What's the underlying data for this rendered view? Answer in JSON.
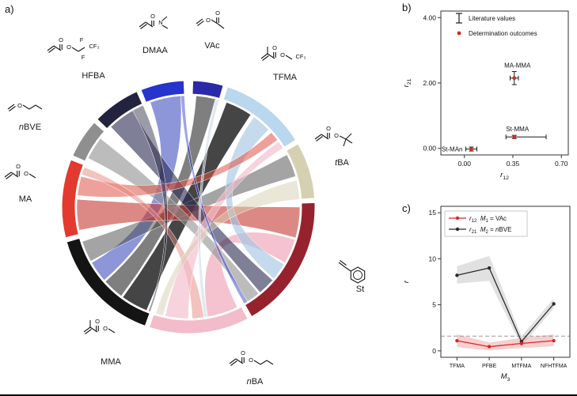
{
  "figure": {
    "panel_a_label": "a)",
    "panel_b_label": "b)",
    "panel_c_label": "c)"
  },
  "chord_diagram": {
    "monomers": [
      {
        "id": "hfba",
        "prefix": "",
        "name": "HFBA",
        "color": "#23233f",
        "arc": [
          314,
          336
        ],
        "atoms": [
          "O",
          "O",
          "F",
          "F",
          "CF₃"
        ]
      },
      {
        "id": "dmaa",
        "prefix": "",
        "name": "DMAA",
        "color": "#2633cc",
        "arc": [
          338,
          358
        ],
        "atoms": [
          "O",
          "N"
        ]
      },
      {
        "id": "vac",
        "prefix": "",
        "name": "VAc",
        "color": "#2a2aa8",
        "arc": [
          2,
          16
        ],
        "atoms": [
          "O",
          "O"
        ]
      },
      {
        "id": "tfma",
        "prefix": "",
        "name": "TFMA",
        "color": "#b9d7ee",
        "arc": [
          18,
          58
        ],
        "atoms": [
          "O",
          "O",
          "CF₃"
        ]
      },
      {
        "id": "tba",
        "prefix": "t",
        "name": "BA",
        "color": "#d6d0b2",
        "arc": [
          60,
          86
        ],
        "atoms": [
          "O",
          "O"
        ]
      },
      {
        "id": "st",
        "prefix": "",
        "name": "St",
        "color": "#96222e",
        "arc": [
          88,
          150
        ],
        "atoms": []
      },
      {
        "id": "nba",
        "prefix": "n",
        "name": "BA",
        "color": "#f3bccb",
        "arc": [
          152,
          198
        ],
        "atoms": [
          "O",
          "O"
        ]
      },
      {
        "id": "mma",
        "prefix": "",
        "name": "MMA",
        "color": "#141414",
        "arc": [
          200,
          254
        ],
        "atoms": [
          "O",
          "O"
        ]
      },
      {
        "id": "ma",
        "prefix": "",
        "name": "MA",
        "color": "#e23a2e",
        "arc": [
          256,
          292
        ],
        "atoms": [
          "O",
          "O"
        ]
      },
      {
        "id": "nbve",
        "prefix": "n",
        "name": "BVE",
        "color": "#8f8f8f",
        "arc": [
          294,
          312
        ],
        "atoms": [
          "O"
        ]
      }
    ],
    "links": [
      {
        "s": [
          202,
          216
        ],
        "t": [
          20,
          34
        ],
        "color": "#1c1c1c",
        "opacity": 0.82
      },
      {
        "s": [
          217,
          228
        ],
        "t": [
          4,
          14
        ],
        "color": "#3a3a3a",
        "opacity": 0.65
      },
      {
        "s": [
          229,
          240
        ],
        "t": [
          340,
          356
        ],
        "color": "#2f3fb8",
        "opacity": 0.55
      },
      {
        "s": [
          241,
          252
        ],
        "t": [
          62,
          74
        ],
        "color": "#4a4a4a",
        "opacity": 0.5
      },
      {
        "s": [
          90,
          106
        ],
        "t": [
          258,
          274
        ],
        "color": "#c43b35",
        "opacity": 0.6
      },
      {
        "s": [
          107,
          120
        ],
        "t": [
          154,
          170
        ],
        "color": "#efa9ba",
        "opacity": 0.7
      },
      {
        "s": [
          121,
          130
        ],
        "t": [
          36,
          46
        ],
        "color": "#a6c6e2",
        "opacity": 0.65
      },
      {
        "s": [
          131,
          140
        ],
        "t": [
          316,
          330
        ],
        "color": "#2a2a52",
        "opacity": 0.6
      },
      {
        "s": [
          141,
          148
        ],
        "t": [
          296,
          308
        ],
        "color": "#8f8f8f",
        "opacity": 0.6
      },
      {
        "s": [
          276,
          286
        ],
        "t": [
          48,
          53
        ],
        "color": "#df5347",
        "opacity": 0.55
      },
      {
        "s": [
          287,
          291
        ],
        "t": [
          172,
          178
        ],
        "color": "#e8887e",
        "opacity": 0.5
      },
      {
        "s": [
          180,
          192
        ],
        "t": [
          54,
          58
        ],
        "color": "#f3bccb",
        "opacity": 0.65
      },
      {
        "s": [
          76,
          86
        ],
        "t": [
          193,
          197
        ],
        "color": "#d6d0b2",
        "opacity": 0.5
      },
      {
        "s": [
          330,
          336
        ],
        "t": [
          200,
          201
        ],
        "color": "#23233f",
        "opacity": 0.45
      },
      {
        "s": [
          356,
          358
        ],
        "t": [
          148,
          150
        ],
        "color": "#2633cc",
        "opacity": 0.45
      },
      {
        "s": [
          14,
          16
        ],
        "t": [
          170,
          172
        ],
        "color": "#cfd8e8",
        "opacity": 0.6
      }
    ]
  },
  "chart_data": [
    {
      "panel": "b",
      "type": "scatter",
      "xlabel": {
        "base": "r",
        "sub": "12"
      },
      "ylabel": {
        "base": "r",
        "sub": "21"
      },
      "xticks": [
        "0.00",
        "0.35",
        "0.70"
      ],
      "xtick_values": [
        0,
        0.35,
        0.7
      ],
      "yticks": [
        "0.00",
        "2.00",
        "4.00"
      ],
      "ytick_values": [
        0,
        2,
        4
      ],
      "xlim": [
        -0.17,
        0.75
      ],
      "ylim": [
        -0.2,
        4.2
      ],
      "legend": [
        {
          "label": "Literature values",
          "marker": "errorbar",
          "color": "#1a1a1a"
        },
        {
          "label": "Determination outcomes",
          "marker": "dot",
          "color": "#d62728"
        }
      ],
      "marker_color": "#d62728",
      "errorbar_color": "#1a1a1a",
      "points": [
        {
          "label": "St-MAn",
          "x": 0.05,
          "y": -0.02,
          "xerr_low": 0.04,
          "xerr_high": 0.04,
          "yerr": 0.06,
          "label_side": "left"
        },
        {
          "label": "St-MMA",
          "x": 0.36,
          "y": 0.35,
          "xerr_low": 0.06,
          "xerr_high": 0.23,
          "yerr": 0.05,
          "label_side": "above"
        },
        {
          "label": "MA-MMA",
          "x": 0.36,
          "y": 2.15,
          "xerr_low": 0.03,
          "xerr_high": 0.03,
          "yerr": 0.2,
          "label_side": "above"
        }
      ]
    },
    {
      "panel": "c",
      "type": "line",
      "categories": [
        "TFMA",
        "PFBE",
        "MTFMA",
        "NFHTFMA"
      ],
      "xlabel": {
        "base": "M",
        "sub": "3"
      },
      "ylabel": {
        "base": "r",
        "sub": ""
      },
      "yticks": [
        "0",
        "5",
        "10",
        "15"
      ],
      "ytick_values": [
        0,
        5,
        10,
        15
      ],
      "ylim": [
        -0.7,
        15.7
      ],
      "reference_line": {
        "y": 1.6,
        "color": "#999999",
        "style": "dashed"
      },
      "legend": [
        {
          "r_sub": "12",
          "m_sub": "1",
          "value": "VAc",
          "value_prefix": "",
          "color": "#d62728"
        },
        {
          "r_sub": "21",
          "m_sub": "2",
          "value": "BVE",
          "value_prefix": "n",
          "color": "#2b2b2b"
        }
      ],
      "series": [
        {
          "name": "r12",
          "color": "#d62728",
          "band_color": "#f0a8a8",
          "values": [
            1.1,
            0.45,
            0.8,
            1.1
          ],
          "band_low": [
            0.4,
            0.05,
            0.3,
            0.5
          ],
          "band_high": [
            1.8,
            0.9,
            1.4,
            1.8
          ]
        },
        {
          "name": "r21",
          "color": "#2b2b2b",
          "band_color": "#c8c8c8",
          "values": [
            8.2,
            9.0,
            1.0,
            5.1
          ],
          "band_low": [
            7.3,
            7.6,
            0.5,
            4.6
          ],
          "band_high": [
            9.2,
            10.3,
            1.6,
            5.7
          ]
        }
      ]
    }
  ]
}
